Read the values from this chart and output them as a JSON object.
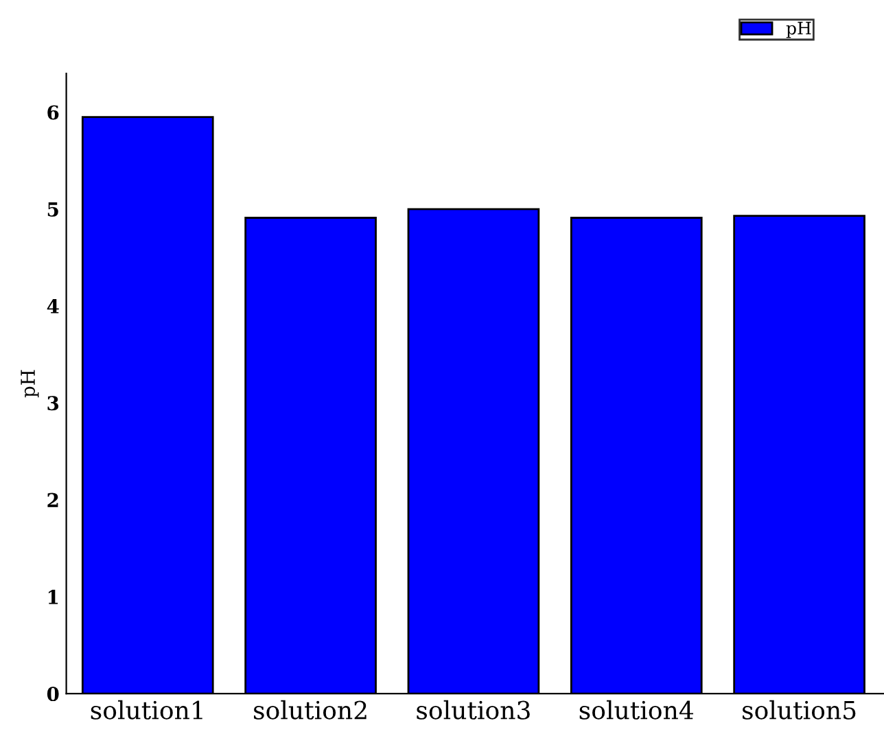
{
  "chart_data": {
    "type": "bar",
    "ylabel": "pH",
    "categories": [
      "solution1",
      "solution2",
      "solution3",
      "solution4",
      "solution5"
    ],
    "series": [
      {
        "name": "pH",
        "color": "#0000ff",
        "values": [
          5.95,
          4.91,
          5.0,
          4.91,
          4.93
        ]
      }
    ],
    "ylim": [
      0,
      6.4
    ],
    "yticks": [
      0,
      1,
      2,
      3,
      4,
      5,
      6
    ],
    "grid": false,
    "legend": "top right"
  }
}
